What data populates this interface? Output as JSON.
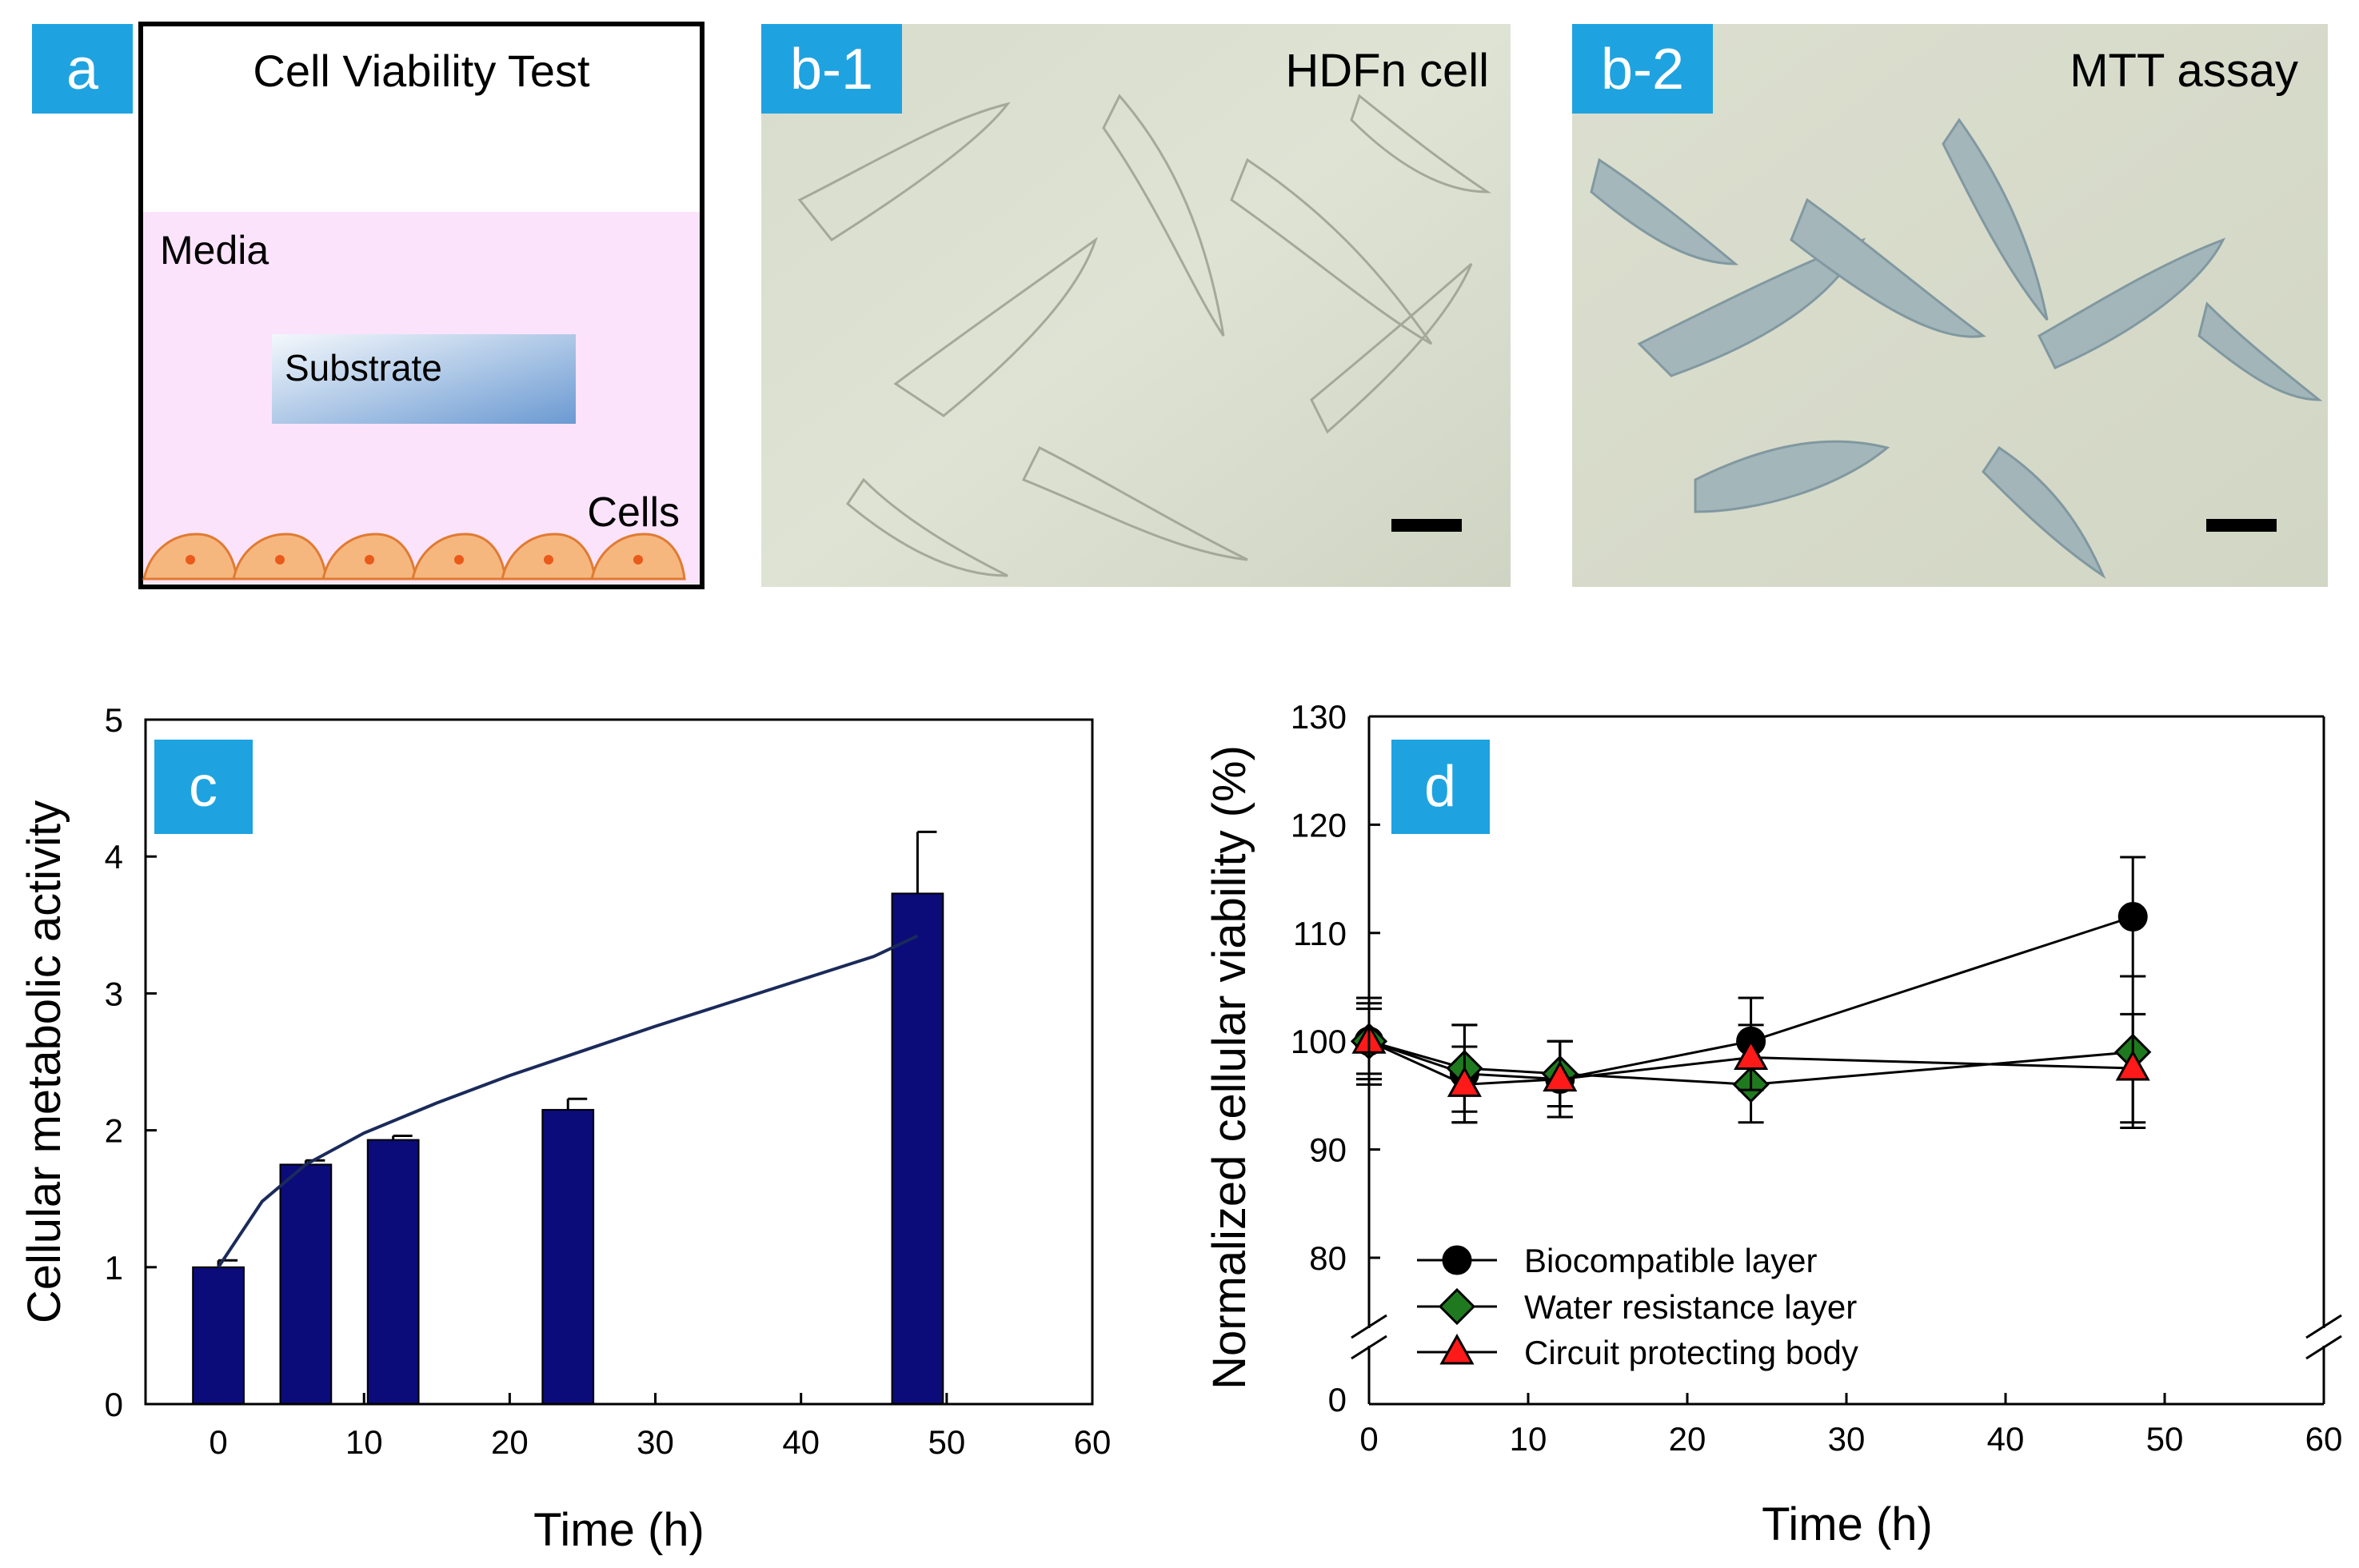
{
  "panels": {
    "a": {
      "label": "a",
      "title": "Cell Viability Test",
      "media_label": "Media",
      "substrate_label": "Substrate",
      "cells_label": "Cells"
    },
    "b1": {
      "label": "b-1",
      "caption": "HDFn cell"
    },
    "b2": {
      "label": "b-2",
      "caption": "MTT assay"
    },
    "c": {
      "label": "c"
    },
    "d": {
      "label": "d"
    }
  },
  "colors": {
    "badge": "#1ea3e0",
    "bar": "#0b0b7a",
    "media": "#fbe3fb",
    "cell_fill": "#f6b77f",
    "cell_stroke": "#e07b32",
    "cell_nucleus": "#ea5a1a",
    "biocompatible": "#000000",
    "water_resistance": "#1f7a1f",
    "circuit": "#ff1a1a"
  },
  "chart_data": [
    {
      "panel": "c",
      "type": "bar",
      "xlabel": "Time (h)",
      "ylabel": "Cellular metabolic activity",
      "xlim": [
        -5,
        60
      ],
      "ylim": [
        0,
        5
      ],
      "xticks": [
        0,
        10,
        20,
        30,
        40,
        50,
        60
      ],
      "yticks": [
        0,
        1,
        2,
        3,
        4,
        5
      ],
      "bar_width_h": 3.5,
      "x": [
        0,
        6,
        12,
        24,
        48
      ],
      "values": [
        1.0,
        1.75,
        1.93,
        2.15,
        3.73
      ],
      "errors": [
        0.05,
        0.03,
        0.03,
        0.08,
        0.45
      ],
      "trend_line": {
        "x": [
          0,
          3,
          6,
          10,
          15,
          20,
          25,
          30,
          35,
          40,
          45,
          48
        ],
        "y": [
          1.0,
          1.48,
          1.75,
          1.98,
          2.2,
          2.4,
          2.58,
          2.76,
          2.93,
          3.1,
          3.27,
          3.42
        ]
      }
    },
    {
      "panel": "d",
      "type": "line",
      "xlabel": "Time (h)",
      "ylabel": "Normalized cellular viability (%)",
      "xlim": [
        0,
        60
      ],
      "xticks": [
        0,
        10,
        20,
        30,
        40,
        50,
        60
      ],
      "ylim": [
        75,
        130
      ],
      "yticks": [
        80,
        90,
        100,
        110,
        120,
        130
      ],
      "broken_axis_zero_label": "0",
      "x": [
        0,
        6,
        12,
        24,
        48
      ],
      "series": [
        {
          "name": "Biocompatible layer",
          "marker": "circle",
          "values": [
            100.0,
            97.0,
            96.5,
            100.0,
            111.5
          ],
          "errors": [
            4.0,
            4.5,
            3.5,
            4.0,
            5.5
          ]
        },
        {
          "name": "Water resistance layer",
          "marker": "diamond",
          "values": [
            100.0,
            97.5,
            97.0,
            96.0,
            99.0
          ],
          "errors": [
            3.5,
            4.0,
            3.0,
            3.5,
            7.0
          ]
        },
        {
          "name": "Circuit protecting body",
          "marker": "triangle",
          "values": [
            100.0,
            96.0,
            96.5,
            98.5,
            97.5
          ],
          "errors": [
            3.0,
            3.5,
            3.5,
            3.0,
            5.0
          ]
        }
      ],
      "legend_position": "bottom-left"
    }
  ]
}
